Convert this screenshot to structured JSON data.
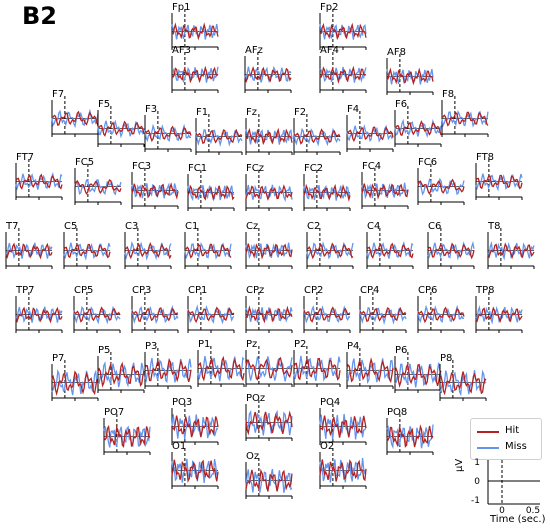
{
  "panel_label": "B2",
  "legend": [
    {
      "label": "Hit",
      "color": "#b22222"
    },
    {
      "label": "Miss",
      "color": "#6495ed"
    }
  ],
  "scale_bar": {
    "unit_label": "μV",
    "time_label": "Time (sec.)",
    "y_ticks": [
      "1",
      "0",
      "-1"
    ],
    "x_ticks": [
      "0",
      "0.5"
    ]
  },
  "chart_data": {
    "type": "line",
    "title": "",
    "xlabel": "Time (sec.)",
    "ylabel": "μV",
    "xlim": [
      -0.2,
      0.6
    ],
    "ylim": [
      -1,
      1
    ],
    "series_names": [
      "Hit",
      "Miss"
    ],
    "channels": [
      "Fp1",
      "Fp2",
      "AF3",
      "AFz",
      "AF4",
      "AF8",
      "F7",
      "F5",
      "F3",
      "F1",
      "Fz",
      "F2",
      "F4",
      "F6",
      "F8",
      "FT7",
      "FC5",
      "FC3",
      "FC1",
      "FCz",
      "FC2",
      "FC4",
      "FC6",
      "FT8",
      "T7",
      "C5",
      "C3",
      "C1",
      "Cz",
      "C2",
      "C4",
      "C6",
      "T8",
      "TP7",
      "CP5",
      "CP3",
      "CP1",
      "CPz",
      "CP2",
      "CP4",
      "CP6",
      "TP8",
      "P7",
      "P5",
      "P3",
      "P1",
      "Pz",
      "P2",
      "P4",
      "P6",
      "P8",
      "PO7",
      "PO3",
      "POz",
      "PO4",
      "PO8",
      "O1",
      "Oz",
      "O2"
    ]
  }
}
